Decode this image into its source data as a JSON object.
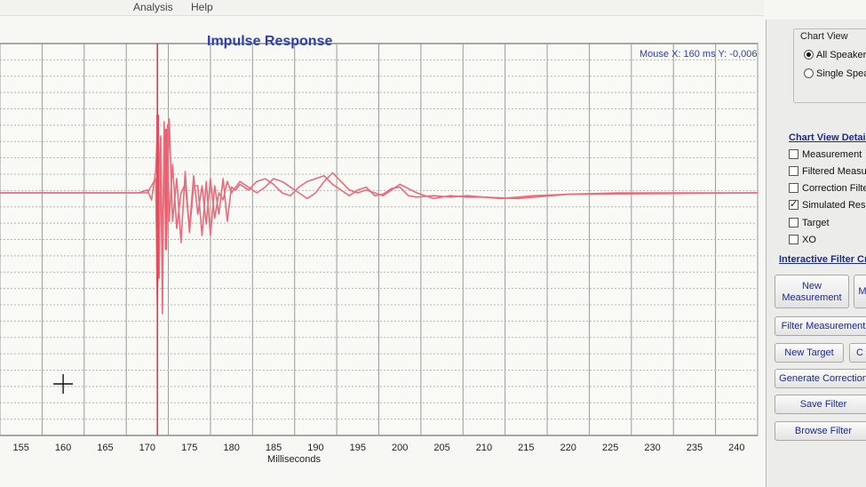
{
  "menu": {
    "items": [
      "Analysis",
      "Help"
    ]
  },
  "chart": {
    "title": "Impulse Response",
    "mouse_readout": "Mouse X: 160 ms   Y: -0,006"
  },
  "chart_data": {
    "type": "line",
    "title": "Impulse Response",
    "xlabel": "Milliseconds",
    "ylabel": "",
    "xlim": [
      152.5,
      242.5
    ],
    "x_ticks": [
      "155",
      "160",
      "165",
      "170",
      "175",
      "180",
      "185",
      "190",
      "195",
      "200",
      "205",
      "210",
      "215",
      "220",
      "225",
      "230",
      "235",
      "240"
    ],
    "ylim": [
      -1,
      1
    ],
    "grid": true,
    "line_color": "#e86d7c",
    "series": [
      {
        "x": [
          152.5,
          169.0,
          170.0,
          170.5,
          171.0,
          171.2,
          171.4,
          171.6,
          171.8,
          172.0,
          172.3,
          172.6,
          173.0,
          173.5,
          174.0,
          174.5,
          175.0,
          175.5,
          176.0,
          176.5,
          177.0,
          177.5,
          178.0,
          178.5,
          179.0,
          179.5,
          180.0,
          180.5,
          181.0,
          182.0,
          183.0,
          184.0,
          185.0,
          186.0,
          187.0,
          188.0,
          189.0,
          190.0,
          191.0,
          192.0,
          193.0,
          194.0,
          195.0,
          196.0,
          197.0,
          198.0,
          199.0,
          200.0,
          201.0,
          202.0,
          204.0,
          206.0,
          208.0,
          210.0,
          212.0,
          214.0,
          216.0,
          220.0,
          226.0,
          242.5
        ],
        "y": [
          0.0,
          0.0,
          0.02,
          -0.05,
          0.15,
          0.45,
          -0.6,
          0.3,
          -0.85,
          0.5,
          -0.3,
          0.52,
          -0.2,
          0.1,
          -0.35,
          0.15,
          -0.28,
          0.05,
          0.05,
          -0.3,
          0.08,
          -0.3,
          0.05,
          -0.15,
          0.1,
          -0.2,
          0.04,
          0.02,
          0.06,
          0.02,
          0.08,
          0.1,
          0.06,
          0.0,
          -0.02,
          0.04,
          0.08,
          0.1,
          0.12,
          0.06,
          0.02,
          -0.02,
          0.02,
          0.04,
          -0.02,
          -0.01,
          0.03,
          0.04,
          -0.02,
          -0.03,
          -0.02,
          -0.03,
          -0.02,
          -0.03,
          -0.04,
          -0.03,
          -0.02,
          -0.01,
          0.0,
          0.0
        ]
      },
      {
        "x": [
          152.5,
          170.0,
          171.0,
          171.2,
          171.4,
          171.6,
          171.8,
          172.0,
          172.2,
          172.4,
          172.6,
          173.0,
          173.5,
          174.0,
          174.5,
          175.0,
          175.5,
          176.0,
          176.5,
          177.0,
          177.5,
          178.0,
          178.5,
          179.0,
          179.5,
          180.0,
          180.5,
          181.0,
          182.0,
          183.0,
          184.0,
          185.0,
          186.0,
          187.0,
          188.0,
          189.0,
          190.0,
          191.0,
          192.0,
          193.0,
          194.0,
          195.0,
          196.0,
          197.0,
          198.0,
          199.0,
          200.0,
          202.0,
          204.0,
          206.0,
          208.0,
          210.0,
          214.0,
          220.0,
          242.5
        ],
        "y": [
          0.0,
          0.0,
          0.1,
          -0.8,
          0.2,
          0.4,
          -0.5,
          0.42,
          -0.4,
          0.48,
          -0.2,
          0.2,
          -0.25,
          0.0,
          0.06,
          -0.25,
          0.12,
          -0.15,
          0.05,
          -0.22,
          0.1,
          -0.18,
          0.0,
          -0.05,
          0.08,
          0.0,
          0.04,
          0.08,
          0.04,
          0.0,
          0.04,
          0.1,
          0.08,
          0.04,
          0.0,
          -0.04,
          0.0,
          0.08,
          0.14,
          0.08,
          0.02,
          0.0,
          0.02,
          0.0,
          -0.02,
          0.02,
          0.06,
          0.0,
          -0.04,
          -0.02,
          -0.03,
          -0.03,
          -0.04,
          -0.01,
          0.0
        ]
      }
    ],
    "cursor_marker": {
      "x": 160,
      "y": -0.006
    }
  },
  "panel": {
    "chart_view_title": "Chart View",
    "radios": [
      {
        "label": "All Speakers",
        "checked": true
      },
      {
        "label": "Single Speaker",
        "checked": false
      }
    ],
    "details_title": "Chart View Details",
    "checkboxes": [
      {
        "label": "Measurement",
        "checked": false
      },
      {
        "label": "Filtered Measurement",
        "checked": false
      },
      {
        "label": "Correction Filter",
        "checked": false
      },
      {
        "label": "Simulated Result",
        "checked": true
      },
      {
        "label": "Target",
        "checked": false
      },
      {
        "label": "XO",
        "checked": false
      }
    ],
    "interactive_title": "Interactive Filter Creation",
    "buttons": {
      "new_measurement": "New Measurement",
      "second_m": "M",
      "filter_measurement": "Filter Measurement",
      "new_target": "New Target",
      "second_c": "C",
      "generate_correction": "Generate Correction",
      "save_filter": "Save Filter",
      "browse_filter": "Browse Filter"
    }
  }
}
